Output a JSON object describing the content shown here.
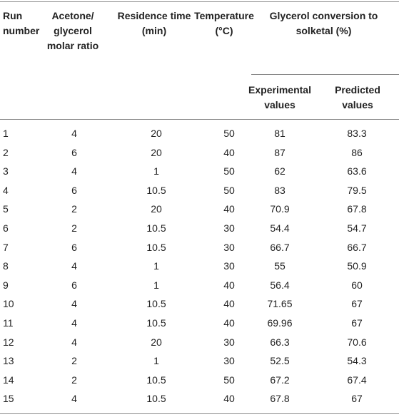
{
  "table": {
    "header": [
      "Run number",
      "Acetone/ glycerol molar ratio",
      "Residence time (min)",
      "Temperature (°C)",
      "Glycerol conversion to solketal (%)"
    ],
    "subheader": [
      "Experimental values",
      "Predicted values"
    ],
    "rows": [
      [
        1,
        4,
        20,
        50,
        81,
        83.3
      ],
      [
        2,
        6,
        20,
        40,
        87,
        86
      ],
      [
        3,
        4,
        1,
        50,
        62,
        63.6
      ],
      [
        4,
        6,
        10.5,
        50,
        83,
        79.5
      ],
      [
        5,
        2,
        20,
        40,
        70.9,
        67.8
      ],
      [
        6,
        2,
        10.5,
        30,
        54.4,
        54.7
      ],
      [
        7,
        6,
        10.5,
        30,
        66.7,
        66.7
      ],
      [
        8,
        4,
        1,
        30,
        55,
        50.9
      ],
      [
        9,
        6,
        1,
        40,
        56.4,
        60
      ],
      [
        10,
        4,
        10.5,
        40,
        71.65,
        67
      ],
      [
        11,
        4,
        10.5,
        40,
        69.96,
        67
      ],
      [
        12,
        4,
        20,
        30,
        66.3,
        70.6
      ],
      [
        13,
        2,
        1,
        30,
        52.5,
        54.3
      ],
      [
        14,
        2,
        10.5,
        50,
        67.2,
        67.4
      ],
      [
        15,
        4,
        10.5,
        40,
        67.8,
        67
      ]
    ]
  }
}
